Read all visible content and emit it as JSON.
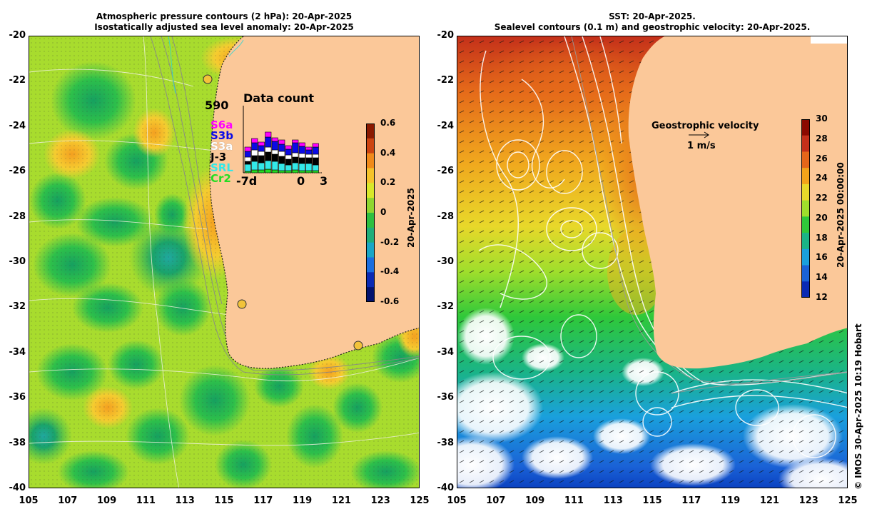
{
  "left": {
    "title_line1": "Atmospheric pressure contours (2 hPa): 20-Apr-2025",
    "title_line2": "Isostatically adjusted sea level anomaly: 20-Apr-2025",
    "colorbar": {
      "ticks": [
        "0.6",
        "0.4",
        "0.2",
        "0",
        "-0.2",
        "-0.4",
        "-0.6"
      ],
      "label": "20-Apr-2025",
      "colors": [
        "#8b1a00",
        "#cc4410",
        "#f08a1a",
        "#f5c32a",
        "#d8e82a",
        "#8ed630",
        "#2ebf40",
        "#1fae7a",
        "#19a6c6",
        "#1a6ee0",
        "#0a2ab4",
        "#02126e"
      ]
    },
    "inset": {
      "title": "Data count",
      "max": "590",
      "xticks": [
        "-7d",
        "0",
        "3"
      ],
      "missions": [
        {
          "name": "S6a",
          "color": "#ff00ff"
        },
        {
          "name": "S3b",
          "color": "#0a0ae6"
        },
        {
          "name": "S3a",
          "color": "#ffffff"
        },
        {
          "name": "J-3",
          "color": "#000000"
        },
        {
          "name": "SRL",
          "color": "#33e8e8"
        },
        {
          "name": "Cr2",
          "color": "#22dd22"
        }
      ]
    }
  },
  "right": {
    "title_line1": "SST: 20-Apr-2025.",
    "title_line2": "Sealevel contours (0.1 m) and geostrophic velocity: 20-Apr-2025.",
    "velocity_label": "Geostrophic velocity",
    "velocity_scale": "1 m/s",
    "colorbar": {
      "ticks": [
        "30",
        "28",
        "26",
        "24",
        "22",
        "20",
        "18",
        "16",
        "14",
        "12"
      ],
      "label": "20-Apr-2025 00:00:00",
      "colors": [
        "#8b0a00",
        "#c4301a",
        "#e5661a",
        "#f2a31a",
        "#e8d82a",
        "#9fde2c",
        "#2fc83a",
        "#1ab486",
        "#1aa0dc",
        "#1a62d6",
        "#0a2ab4"
      ]
    }
  },
  "axes": {
    "x": [
      "105",
      "107",
      "109",
      "111",
      "113",
      "115",
      "117",
      "119",
      "121",
      "123",
      "125"
    ],
    "y": [
      "-20",
      "-22",
      "-24",
      "-26",
      "-28",
      "-30",
      "-32",
      "-34",
      "-36",
      "-38",
      "-40"
    ]
  },
  "copyright": "© IMOS 30-Apr-2025 10:19 Hobart"
}
